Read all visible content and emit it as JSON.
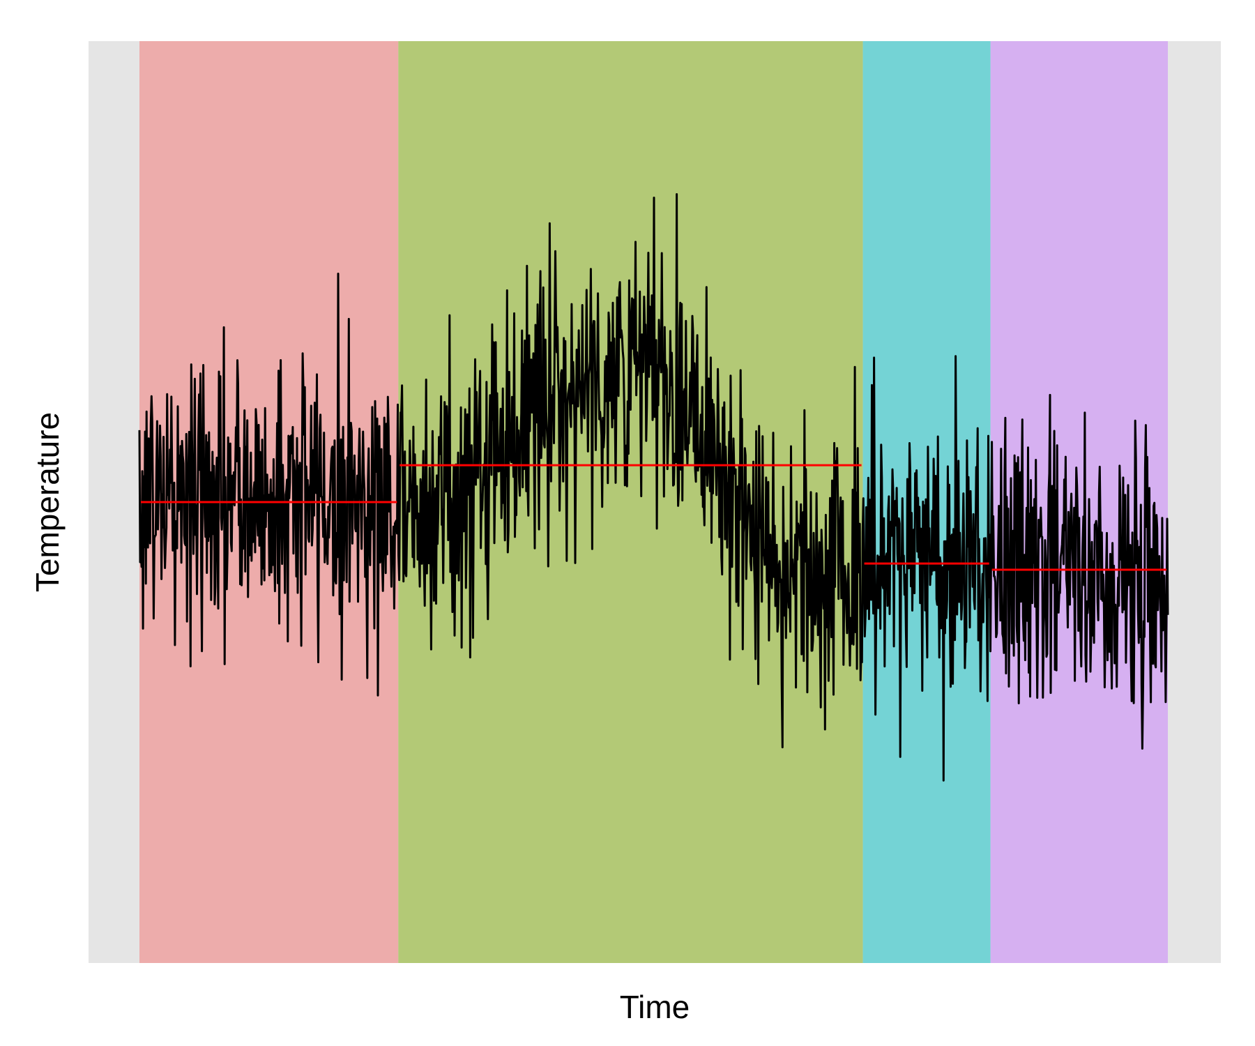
{
  "chart_data": {
    "type": "line",
    "title": "",
    "xlabel": "Time",
    "ylabel": "Temperature",
    "grid": false,
    "legend": "none",
    "xlim": [
      0,
      1450
    ],
    "ylim": [
      -3.0,
      3.0
    ],
    "colors": {
      "panel": "#e5e5e5",
      "line": "#000000",
      "segment_mean": "#ff0000"
    },
    "segments": [
      {
        "start": 0,
        "end": 365,
        "mean": 0.0,
        "color": "#edacab"
      },
      {
        "start": 365,
        "end": 1020,
        "mean": 0.24,
        "color": "#b3c976"
      },
      {
        "start": 1020,
        "end": 1200,
        "mean": -0.4,
        "color": "#74d3d5"
      },
      {
        "start": 1200,
        "end": 1450,
        "mean": -0.44,
        "color": "#d6b0f1"
      }
    ],
    "trend_points": [
      {
        "x": 0,
        "y": 0.05
      },
      {
        "x": 120,
        "y": 0.0
      },
      {
        "x": 250,
        "y": 0.05
      },
      {
        "x": 365,
        "y": 0.0
      },
      {
        "x": 450,
        "y": 0.0
      },
      {
        "x": 520,
        "y": 0.45
      },
      {
        "x": 600,
        "y": 0.75
      },
      {
        "x": 700,
        "y": 0.85
      },
      {
        "x": 780,
        "y": 0.7
      },
      {
        "x": 820,
        "y": 0.35
      },
      {
        "x": 860,
        "y": -0.35
      },
      {
        "x": 940,
        "y": -0.4
      },
      {
        "x": 1020,
        "y": -0.45
      },
      {
        "x": 1100,
        "y": -0.3
      },
      {
        "x": 1200,
        "y": -0.4
      },
      {
        "x": 1300,
        "y": -0.45
      },
      {
        "x": 1450,
        "y": -0.5
      }
    ],
    "noise_sd": 0.45,
    "n_points": 1450
  }
}
